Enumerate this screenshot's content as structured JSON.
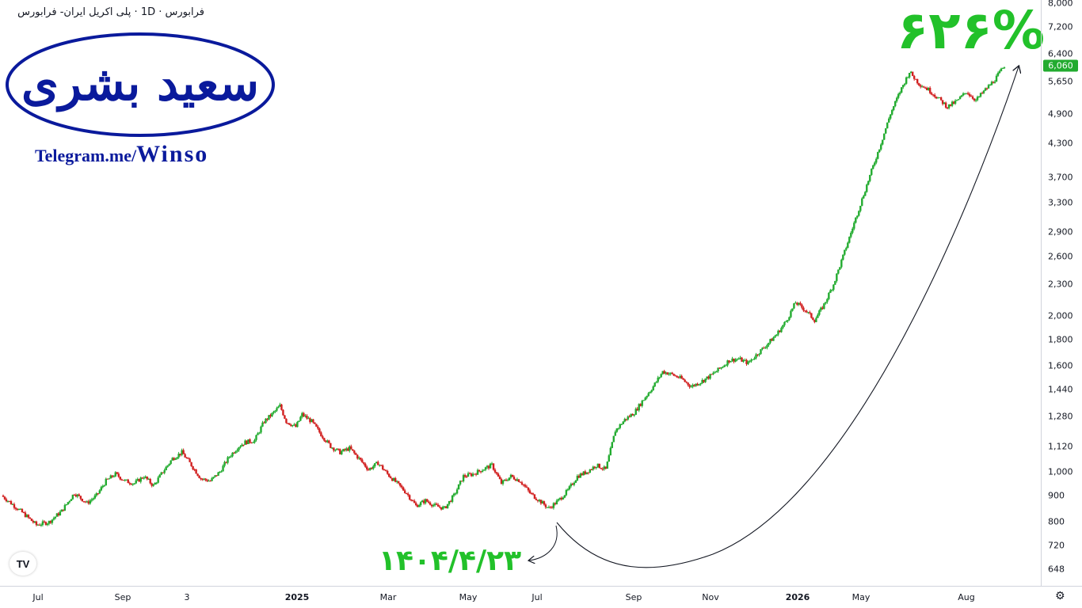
{
  "header": {
    "symbol_title": "فرابورس · 1D · پلی اکریل ایران- فرابورس"
  },
  "branding": {
    "logo_text": "سعید بشری",
    "telegram_prefix": "Telegram.me/",
    "telegram_handle": "Winso",
    "logo_color": "#0a1a9c"
  },
  "annotations": {
    "gain_percent": "۶۲۶%",
    "start_date": "۱۴۰۴/۴/۲۳",
    "gain_color": "#22c12a"
  },
  "colors": {
    "up": "#22ab2f",
    "down": "#d11f1f",
    "arrow": "#131722"
  },
  "tv_logo": {
    "icon": "tradingview-logo-icon",
    "text": "TV"
  },
  "settings": {
    "icon": "settings-gear-icon",
    "glyph": "⚙"
  },
  "chart_data": {
    "type": "candlestick",
    "yscale": "log",
    "ylim": [
      620,
      8000
    ],
    "y_ticks": [
      648,
      720,
      800,
      900,
      1000,
      1120,
      1280,
      1440,
      1600,
      1800,
      2000,
      2300,
      2600,
      2900,
      3300,
      3700,
      4300,
      4900,
      5650,
      6400,
      7200,
      8000
    ],
    "y_tick_labels": [
      "648",
      "720",
      "800",
      "900",
      "1,000",
      "1,120",
      "1,280",
      "1,440",
      "1,600",
      "1,800",
      "2,000",
      "2,300",
      "2,600",
      "2,900",
      "3,300",
      "3,700",
      "4,300",
      "4,900",
      "5,650",
      "6,400",
      "7,200",
      "8,000"
    ],
    "last_price": 6060,
    "last_price_label": "6,060",
    "x_labels": [
      {
        "label": "Jul",
        "bold": false
      },
      {
        "label": "Sep",
        "bold": false
      },
      {
        "label": "3",
        "bold": false
      },
      {
        "label": "2025",
        "bold": true
      },
      {
        "label": "Mar",
        "bold": false
      },
      {
        "label": "May",
        "bold": false
      },
      {
        "label": "Jul",
        "bold": false
      },
      {
        "label": "Sep",
        "bold": false
      },
      {
        "label": "Nov",
        "bold": false
      },
      {
        "label": "2026",
        "bold": true
      },
      {
        "label": "May",
        "bold": false
      },
      {
        "label": "Aug",
        "bold": false
      }
    ],
    "price_path": [
      [
        0,
        900
      ],
      [
        6,
        870
      ],
      [
        14,
        830
      ],
      [
        22,
        790
      ],
      [
        30,
        800
      ],
      [
        38,
        840
      ],
      [
        46,
        910
      ],
      [
        54,
        870
      ],
      [
        60,
        900
      ],
      [
        66,
        960
      ],
      [
        72,
        990
      ],
      [
        78,
        960
      ],
      [
        84,
        950
      ],
      [
        90,
        980
      ],
      [
        96,
        940
      ],
      [
        102,
        1000
      ],
      [
        108,
        1060
      ],
      [
        114,
        1090
      ],
      [
        120,
        1030
      ],
      [
        126,
        970
      ],
      [
        132,
        960
      ],
      [
        138,
        1000
      ],
      [
        144,
        1070
      ],
      [
        150,
        1120
      ],
      [
        154,
        1140
      ],
      [
        160,
        1150
      ],
      [
        166,
        1250
      ],
      [
        172,
        1300
      ],
      [
        176,
        1340
      ],
      [
        180,
        1250
      ],
      [
        186,
        1220
      ],
      [
        190,
        1290
      ],
      [
        196,
        1250
      ],
      [
        202,
        1180
      ],
      [
        208,
        1120
      ],
      [
        214,
        1090
      ],
      [
        220,
        1110
      ],
      [
        226,
        1060
      ],
      [
        232,
        1010
      ],
      [
        238,
        1040
      ],
      [
        244,
        990
      ],
      [
        250,
        950
      ],
      [
        256,
        910
      ],
      [
        262,
        860
      ],
      [
        268,
        880
      ],
      [
        274,
        860
      ],
      [
        280,
        850
      ],
      [
        286,
        900
      ],
      [
        292,
        980
      ],
      [
        298,
        990
      ],
      [
        304,
        1010
      ],
      [
        310,
        1030
      ],
      [
        316,
        950
      ],
      [
        322,
        980
      ],
      [
        328,
        960
      ],
      [
        334,
        910
      ],
      [
        340,
        880
      ],
      [
        346,
        850
      ],
      [
        352,
        880
      ],
      [
        358,
        920
      ],
      [
        364,
        980
      ],
      [
        370,
        1000
      ],
      [
        376,
        1030
      ],
      [
        382,
        1010
      ],
      [
        388,
        1200
      ],
      [
        394,
        1260
      ],
      [
        400,
        1300
      ],
      [
        406,
        1380
      ],
      [
        412,
        1460
      ],
      [
        418,
        1560
      ],
      [
        424,
        1540
      ],
      [
        430,
        1510
      ],
      [
        436,
        1460
      ],
      [
        442,
        1490
      ],
      [
        448,
        1530
      ],
      [
        454,
        1580
      ],
      [
        460,
        1640
      ],
      [
        466,
        1650
      ],
      [
        472,
        1620
      ],
      [
        478,
        1690
      ],
      [
        484,
        1760
      ],
      [
        490,
        1840
      ],
      [
        496,
        1950
      ],
      [
        502,
        2120
      ],
      [
        508,
        2050
      ],
      [
        514,
        1960
      ],
      [
        520,
        2100
      ],
      [
        526,
        2300
      ],
      [
        532,
        2600
      ],
      [
        538,
        2950
      ],
      [
        544,
        3350
      ],
      [
        550,
        3800
      ],
      [
        556,
        4300
      ],
      [
        562,
        4900
      ],
      [
        568,
        5400
      ],
      [
        574,
        5900
      ],
      [
        580,
        5600
      ],
      [
        586,
        5450
      ],
      [
        592,
        5250
      ],
      [
        598,
        5050
      ],
      [
        604,
        5180
      ],
      [
        610,
        5400
      ],
      [
        616,
        5200
      ],
      [
        622,
        5450
      ],
      [
        628,
        5700
      ],
      [
        634,
        6060
      ]
    ]
  }
}
